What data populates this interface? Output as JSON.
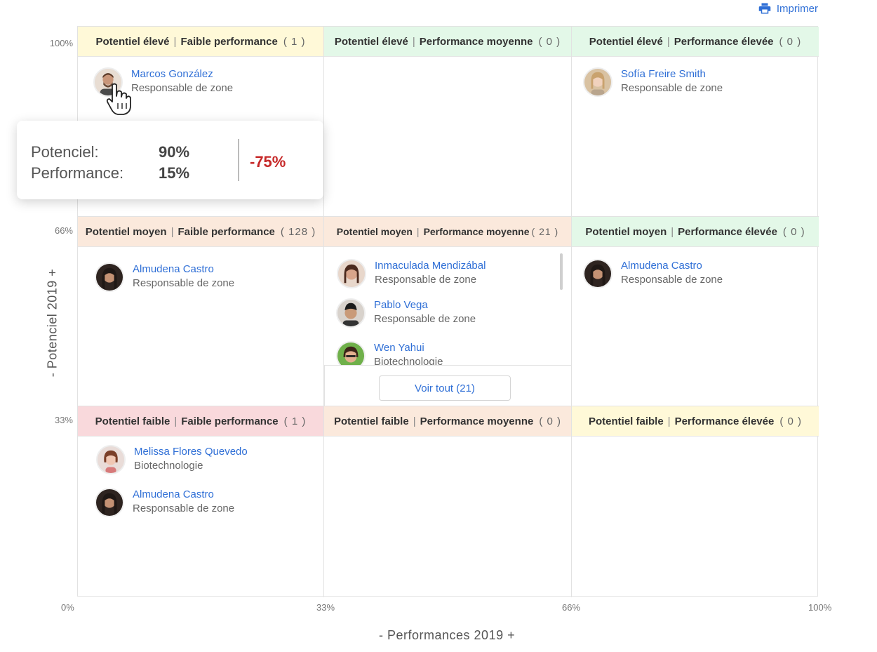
{
  "toolbar": {
    "print_label": "Imprimer",
    "print_icon": "printer-icon"
  },
  "colors": {
    "link": "#2f6fd6",
    "high_low": "#fff9d8",
    "green": "#e3f8e8",
    "orange": "#fbe9dc",
    "pink": "#f9d9dc",
    "negative": "#c62828"
  },
  "axes": {
    "x_title": "- Performances 2019 +",
    "y_title": "- Potenciel 2019 +",
    "x_ticks": [
      "0%",
      "33%",
      "66%",
      "100%"
    ],
    "y_ticks": [
      "100%",
      "66%",
      "33%"
    ]
  },
  "cells": {
    "c11": {
      "pot": "Potentiel élevé",
      "perf": "Faible performance",
      "count": "( 1 )"
    },
    "c12": {
      "pot": "Potentiel élevé",
      "perf": "Performance moyenne",
      "count": "( 0 )"
    },
    "c13": {
      "pot": "Potentiel élevé",
      "perf": "Performance élevée",
      "count": "( 0 )"
    },
    "c21": {
      "pot": "Potentiel moyen",
      "perf": "Faible performance",
      "count": "( 128 )"
    },
    "c22": {
      "pot": "Potentiel moyen",
      "perf": "Performance moyenne",
      "count": "( 21 )"
    },
    "c23": {
      "pot": "Potentiel moyen",
      "perf": "Performance élevée",
      "count": "( 0 )"
    },
    "c31": {
      "pot": "Potentiel faible",
      "perf": "Faible performance",
      "count": "( 1 )"
    },
    "c32": {
      "pot": "Potentiel faible",
      "perf": "Performance moyenne",
      "count": "( 0 )"
    },
    "c33": {
      "pot": "Potentiel faible",
      "perf": "Performance élevée",
      "count": "( 0 )"
    }
  },
  "people": {
    "p1": {
      "name": "Marcos González",
      "role": "Responsable de zone"
    },
    "p2": {
      "name": "Sofía Freire Smith",
      "role": "Responsable de zone"
    },
    "p3": {
      "name": "Almudena Castro",
      "role": "Responsable de zone"
    },
    "p4": {
      "name": "Inmaculada Mendizábal",
      "role": "Responsable de zone"
    },
    "p5": {
      "name": "Pablo Vega",
      "role": "Responsable de zone"
    },
    "p6": {
      "name": "Wen Yahui",
      "role": "Biotechnologie"
    },
    "p7": {
      "name": "Almudena Castro",
      "role": "Responsable de zone"
    },
    "p8": {
      "name": "Melissa Flores Quevedo",
      "role": "Biotechnologie"
    },
    "p9": {
      "name": "Almudena Castro",
      "role": "Responsable de zone"
    }
  },
  "see_all": {
    "label": "Voir tout  (21)"
  },
  "tooltip": {
    "potential_label": "Potenciel:",
    "potential_value": "90%",
    "performance_label": "Performance:",
    "performance_value": "15%",
    "difference": "-75%"
  }
}
